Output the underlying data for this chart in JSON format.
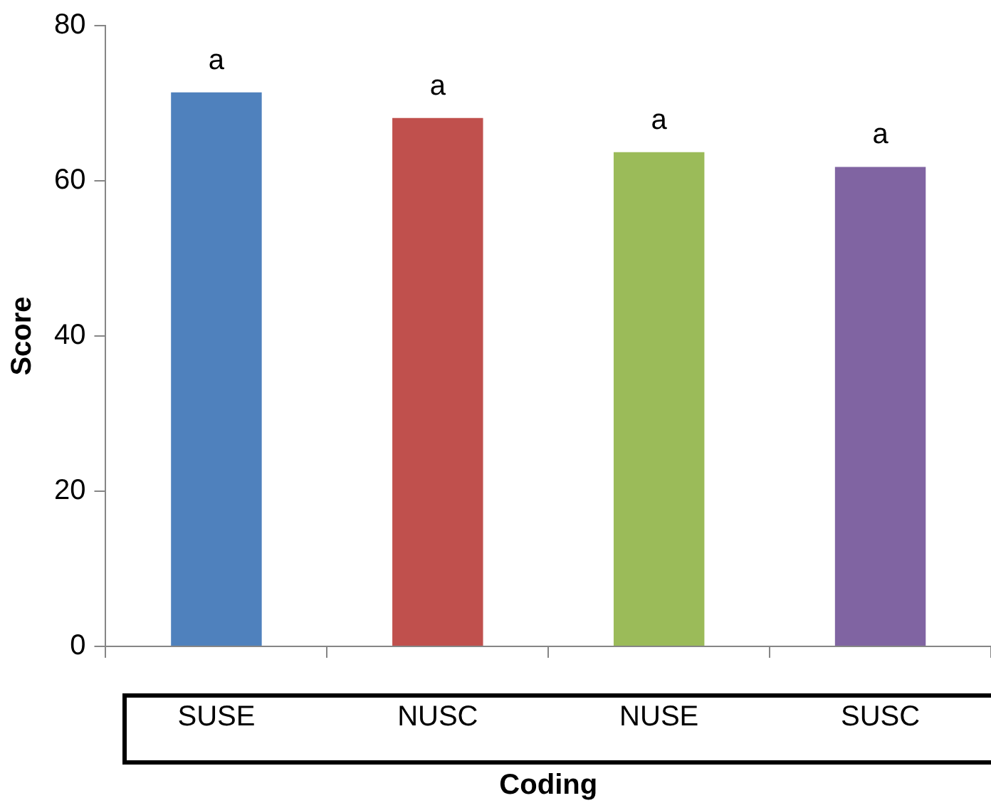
{
  "chart_data": {
    "type": "bar",
    "xlabel": "Coding",
    "ylabel": "Score",
    "categories": [
      "SUSE",
      "NUSC",
      "NUSE",
      "SUSC"
    ],
    "values": [
      71.4,
      68.1,
      63.7,
      61.8
    ],
    "colors": [
      "#4f81bd",
      "#c0504d",
      "#9bbb59",
      "#8064a2"
    ],
    "ylim": [
      0,
      80
    ],
    "yticks": [
      0,
      20,
      40,
      60,
      80
    ],
    "grid": false,
    "legend": false,
    "annotations": [
      {
        "text": "a",
        "x": "SUSE",
        "y": 71.4
      },
      {
        "text": "a",
        "x": "NUSC",
        "y": 68.1
      },
      {
        "text": "a",
        "x": "NUSE",
        "y": 63.7
      },
      {
        "text": "a",
        "x": "SUSC",
        "y": 61.8
      }
    ]
  }
}
